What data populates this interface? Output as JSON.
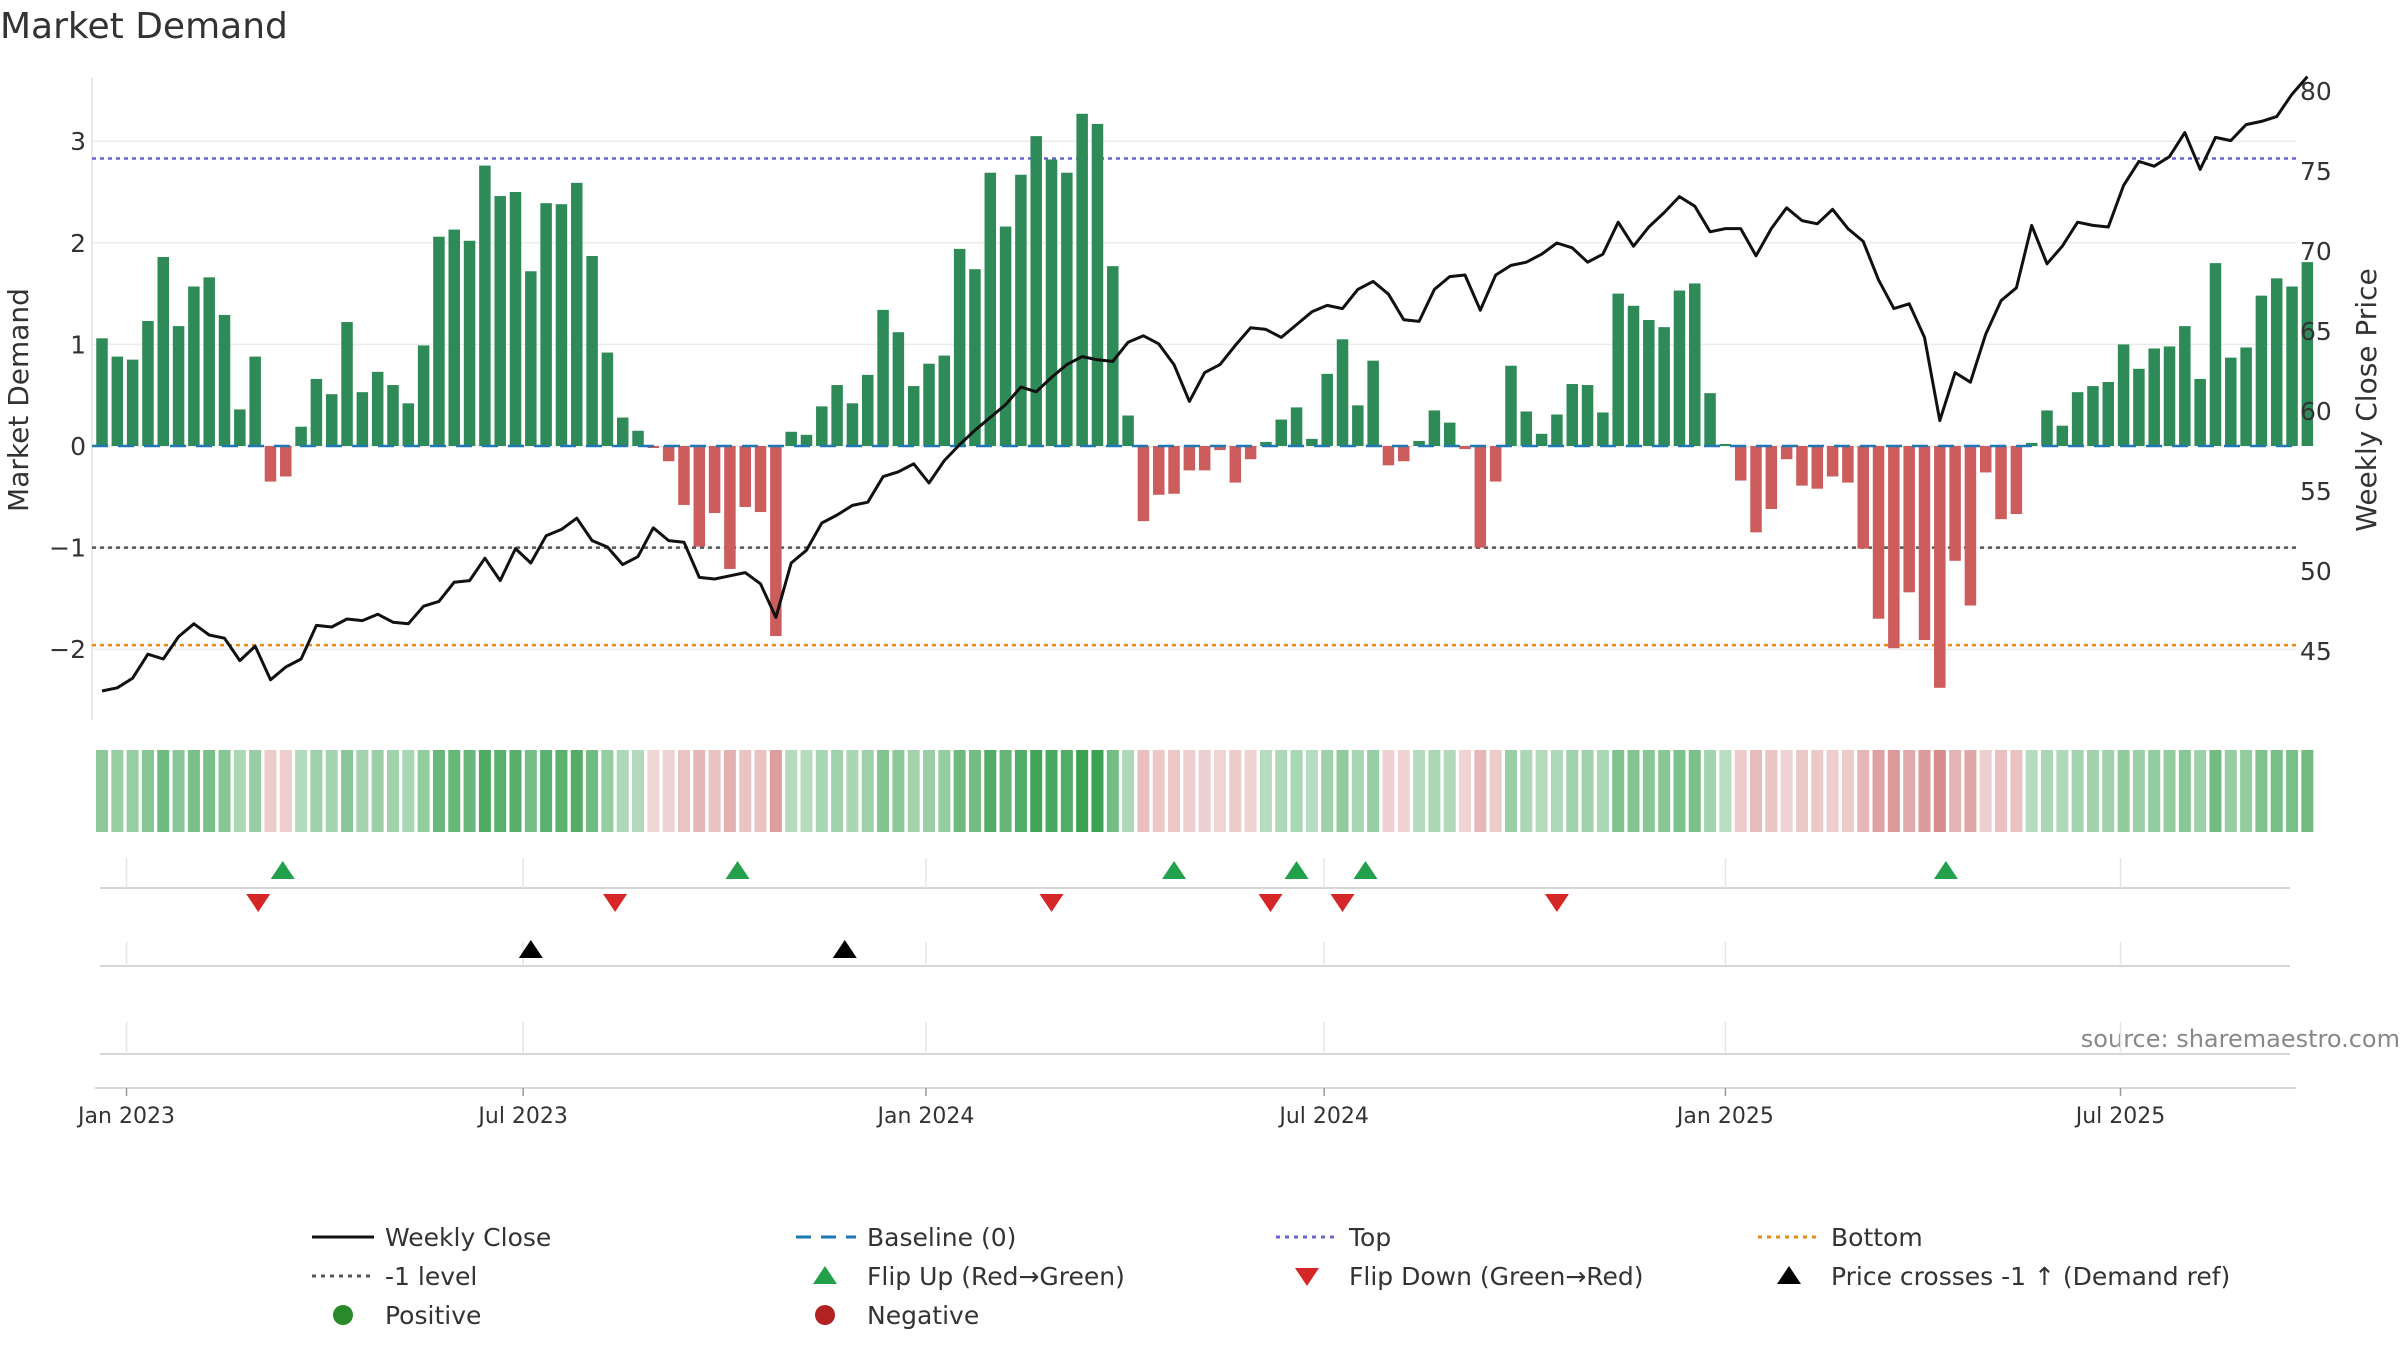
{
  "chart_data": {
    "type": "bar",
    "title": "Market Demand",
    "ylabel_left": "Market Demand",
    "ylabel_right": "Weekly Close Price",
    "source": "source: sharemaestro.com",
    "left_ylim": [
      -2.75,
      3.6
    ],
    "left_ticks": [
      3,
      2,
      1,
      0,
      -1,
      -2
    ],
    "left_tick_labels": [
      "3",
      "2",
      "1",
      "0",
      "−1",
      "−2"
    ],
    "right_ylim": [
      40.5,
      81
    ],
    "right_ticks": [
      80,
      75,
      70,
      65,
      60,
      55,
      50,
      45
    ],
    "x_start_date": "2022-12-26",
    "x_ticks": [
      {
        "label": "Jan 2023",
        "week": 1.6
      },
      {
        "label": "Jul 2023",
        "week": 27.5
      },
      {
        "label": "Jan 2024",
        "week": 53.8
      },
      {
        "label": "Jul 2024",
        "week": 79.8
      },
      {
        "label": "Jan 2025",
        "week": 106
      },
      {
        "label": "Jul 2025",
        "week": 131.8
      }
    ],
    "ref_lines": {
      "top": 2.83,
      "minus_one": -1.0,
      "bottom": -1.96,
      "baseline": 0
    },
    "demand": [
      1.06,
      0.88,
      0.85,
      1.23,
      1.86,
      1.18,
      1.57,
      1.66,
      1.29,
      0.36,
      0.88,
      -0.35,
      -0.3,
      0.19,
      0.66,
      0.51,
      1.22,
      0.53,
      0.73,
      0.6,
      0.42,
      0.99,
      2.06,
      2.13,
      2.02,
      2.76,
      2.46,
      2.5,
      1.72,
      2.39,
      2.38,
      2.59,
      1.87,
      0.92,
      0.28,
      0.15,
      -0.02,
      -0.15,
      -0.58,
      -0.99,
      -0.66,
      -1.21,
      -0.6,
      -0.65,
      -1.87,
      0.14,
      0.11,
      0.39,
      0.6,
      0.42,
      0.7,
      1.34,
      1.12,
      0.59,
      0.81,
      0.89,
      1.94,
      1.74,
      2.69,
      2.16,
      2.67,
      3.05,
      2.82,
      2.69,
      3.27,
      3.17,
      1.77,
      0.3,
      -0.74,
      -0.48,
      -0.47,
      -0.24,
      -0.24,
      -0.04,
      -0.36,
      -0.13,
      0.04,
      0.26,
      0.38,
      0.07,
      0.71,
      1.05,
      0.4,
      0.84,
      -0.19,
      -0.15,
      0.05,
      0.35,
      0.23,
      -0.03,
      -1.0,
      -0.35,
      0.79,
      0.34,
      0.12,
      0.31,
      0.61,
      0.6,
      0.33,
      1.5,
      1.38,
      1.24,
      1.17,
      1.53,
      1.6,
      0.52,
      0.02,
      -0.34,
      -0.85,
      -0.62,
      -0.13,
      -0.39,
      -0.42,
      -0.3,
      -0.36,
      -1.01,
      -1.7,
      -1.99,
      -1.44,
      -1.91,
      -2.38,
      -1.13,
      -1.57,
      -0.26,
      -0.72,
      -0.67,
      0.03,
      0.35,
      0.2,
      0.53,
      0.59,
      0.63,
      1.0,
      0.76,
      0.96,
      0.98,
      1.18,
      0.66,
      1.8,
      0.87,
      0.97,
      1.48,
      1.65,
      1.57,
      1.81
    ],
    "close": [
      42.5,
      42.7,
      43.3,
      44.8,
      44.5,
      45.9,
      46.7,
      46,
      45.8,
      44.4,
      45.3,
      43.2,
      44,
      44.5,
      46.6,
      46.5,
      47,
      46.9,
      47.3,
      46.8,
      46.7,
      47.8,
      48.1,
      49.3,
      49.4,
      50.8,
      49.4,
      51.4,
      50.5,
      52.2,
      52.6,
      53.3,
      51.9,
      51.5,
      50.4,
      50.9,
      52.7,
      51.9,
      51.8,
      49.6,
      49.5,
      49.7,
      49.9,
      49.2,
      47.1,
      50.5,
      51.3,
      53,
      53.5,
      54.1,
      54.3,
      55.9,
      56.2,
      56.7,
      55.5,
      56.9,
      57.9,
      58.8,
      59.6,
      60.4,
      61.5,
      61.2,
      62.1,
      62.9,
      63.4,
      63.2,
      63.1,
      64.3,
      64.7,
      64.2,
      62.9,
      60.6,
      62.4,
      62.9,
      64.1,
      65.2,
      65.1,
      64.6,
      65.4,
      66.2,
      66.6,
      66.4,
      67.6,
      68.1,
      67.3,
      65.7,
      65.6,
      67.6,
      68.4,
      68.5,
      66.3,
      68.5,
      69.1,
      69.3,
      69.8,
      70.5,
      70.2,
      69.3,
      69.8,
      71.8,
      70.3,
      71.5,
      72.4,
      73.4,
      72.8,
      71.2,
      71.4,
      71.4,
      69.7,
      71.4,
      72.7,
      71.9,
      71.7,
      72.6,
      71.4,
      70.6,
      68.2,
      66.4,
      66.7,
      64.6,
      59.4,
      62.4,
      61.8,
      64.8,
      66.9,
      67.7,
      71.6,
      69.2,
      70.3,
      71.8,
      71.6,
      71.5,
      74.1,
      75.6,
      75.3,
      75.9,
      77.4,
      75.1,
      77.1,
      76.9,
      77.9,
      78.1,
      78.4,
      79.8,
      80.9
    ],
    "flip_up_weeks": [
      11.8,
      41.5,
      70,
      78,
      82.5
    ],
    "flip_down_weeks": [
      10.2,
      33.5,
      62,
      76.3,
      81,
      95
    ],
    "price_cross_weeks": [
      28,
      48.5
    ],
    "flip_up_extra_weeks": [
      120.4
    ],
    "legend": [
      {
        "label": "Weekly Close",
        "symbol": "line",
        "color": "#111111"
      },
      {
        "label": "Baseline (0)",
        "symbol": "dash",
        "color": "#1f77b4"
      },
      {
        "label": "Top",
        "symbol": "dot",
        "color": "#6a64d4"
      },
      {
        "label": "Bottom",
        "symbol": "dot",
        "color": "#e8891c"
      },
      {
        "label": "-1 level",
        "symbol": "dot",
        "color": "#555555"
      },
      {
        "label": "Flip Up (Red→Green)",
        "symbol": "tri-up",
        "color": "#22a04b"
      },
      {
        "label": "Flip Down (Green→Red)",
        "symbol": "tri-down",
        "color": "#d62728"
      },
      {
        "label": "Price crosses -1 ↑ (Demand ref)",
        "symbol": "tri-up",
        "color": "#000000"
      },
      {
        "label": "Positive",
        "symbol": "circle",
        "color": "#2a8a2a"
      },
      {
        "label": "Negative",
        "symbol": "circle",
        "color": "#b22222"
      }
    ],
    "colors": {
      "positive": "#2e8b57",
      "negative": "#cd5c5c",
      "line": "#111111"
    }
  }
}
